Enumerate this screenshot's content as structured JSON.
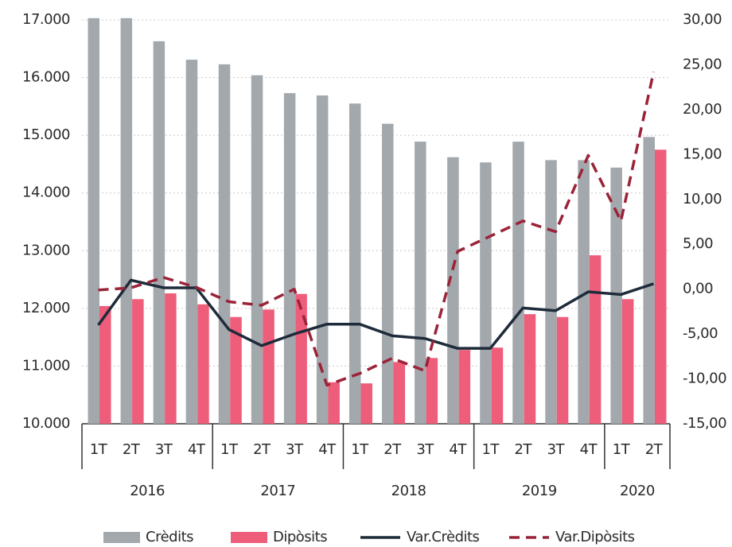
{
  "chart_data": {
    "type": "bar-line",
    "groups": [
      {
        "label": "2016",
        "categories": [
          "1T",
          "2T",
          "3T",
          "4T"
        ]
      },
      {
        "label": "2017",
        "categories": [
          "1T",
          "2T",
          "3T",
          "4T"
        ]
      },
      {
        "label": "2018",
        "categories": [
          "1T",
          "2T",
          "3T",
          "4T"
        ]
      },
      {
        "label": "2019",
        "categories": [
          "1T",
          "2T",
          "3T",
          "4T"
        ]
      },
      {
        "label": "2020",
        "categories": [
          "1T",
          "2T"
        ]
      }
    ],
    "series": [
      {
        "name": "Crèdits",
        "type": "bar",
        "color": "#a3a8ad",
        "values": [
          17030,
          17030,
          16630,
          16310,
          16230,
          16040,
          15730,
          15690,
          15550,
          15200,
          14890,
          14620,
          14530,
          14890,
          14570,
          14570,
          14440,
          14970
        ]
      },
      {
        "name": "Dipòsits",
        "type": "bar",
        "color": "#ee5d7a",
        "values": [
          12040,
          12160,
          12260,
          12070,
          11850,
          11980,
          12250,
          10720,
          10700,
          11070,
          11140,
          11280,
          11320,
          11900,
          11850,
          12920,
          12160,
          14750
        ]
      },
      {
        "name": "Var.Crèdits",
        "type": "line",
        "axis": "y2",
        "color": "#1e2b3a",
        "dash": false,
        "values": [
          -4.0,
          1.0,
          0.15,
          0.15,
          -4.5,
          -6.3,
          -5.0,
          -3.9,
          -3.9,
          -5.2,
          -5.5,
          -6.6,
          -6.6,
          -2.1,
          -2.4,
          -0.3,
          -0.6,
          0.6
        ]
      },
      {
        "name": "Var.Dipòsits",
        "type": "line",
        "axis": "y2",
        "color": "#9b2338",
        "dash": true,
        "values": [
          -0.1,
          0.15,
          1.3,
          0.2,
          -1.4,
          -1.8,
          0.0,
          -10.7,
          -9.4,
          -7.7,
          -9.1,
          4.2,
          5.9,
          7.6,
          6.4,
          14.9,
          7.6,
          24.2
        ]
      }
    ],
    "ylim": [
      10000,
      17000
    ],
    "yticks": [
      {
        "value": 10000,
        "label": "10.000"
      },
      {
        "value": 11000,
        "label": "11.000"
      },
      {
        "value": 12000,
        "label": "12.000"
      },
      {
        "value": 13000,
        "label": "13.000"
      },
      {
        "value": 14000,
        "label": "14.000"
      },
      {
        "value": 15000,
        "label": "15.000"
      },
      {
        "value": 16000,
        "label": "16.000"
      },
      {
        "value": 17000,
        "label": "17.000"
      }
    ],
    "y2lim": [
      -15,
      30
    ],
    "y2ticks": [
      {
        "value": -15,
        "label": "-15,00"
      },
      {
        "value": -10,
        "label": "-10,00"
      },
      {
        "value": -5,
        "label": "-5,00"
      },
      {
        "value": 0,
        "label": "0,00"
      },
      {
        "value": 5,
        "label": "5,00"
      },
      {
        "value": 10,
        "label": "10,00"
      },
      {
        "value": 15,
        "label": "15,00"
      },
      {
        "value": 20,
        "label": "20,00"
      },
      {
        "value": 25,
        "label": "25,00"
      },
      {
        "value": 30,
        "label": "30,00"
      }
    ],
    "grid": true,
    "legend": "bottom"
  }
}
